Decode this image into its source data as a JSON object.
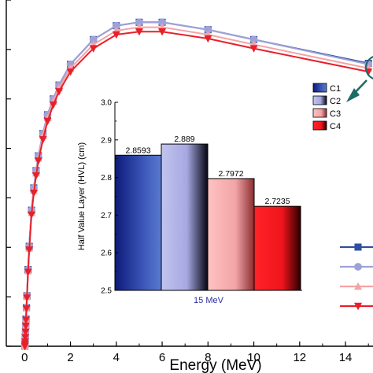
{
  "chart_data": [
    {
      "type": "line",
      "xlabel": "Energy (MeV)",
      "ylabel": "",
      "xlim": [
        -0.8,
        15.2
      ],
      "ylim": [
        0,
        7.0
      ],
      "x_ticks": [
        "0",
        "2",
        "4",
        "6",
        "8",
        "10",
        "12",
        "14"
      ],
      "grid": false,
      "legend": "right",
      "series": [
        {
          "name": "",
          "color": "#2f4fa0",
          "marker": "square",
          "x": [
            0.01,
            0.015,
            0.02,
            0.03,
            0.04,
            0.05,
            0.06,
            0.08,
            0.1,
            0.15,
            0.2,
            0.3,
            0.4,
            0.5,
            0.6,
            0.8,
            1,
            1.25,
            1.5,
            2,
            3,
            4,
            5,
            6,
            8,
            10,
            15
          ],
          "y": [
            0.0,
            0.04,
            0.09,
            0.19,
            0.3,
            0.42,
            0.55,
            0.78,
            1.02,
            1.55,
            2.02,
            2.75,
            3.2,
            3.55,
            3.85,
            4.3,
            4.68,
            5.0,
            5.28,
            5.7,
            6.2,
            6.48,
            6.55,
            6.55,
            6.4,
            6.2,
            5.72
          ]
        },
        {
          "name": "",
          "color": "#9ea2d8",
          "marker": "circle",
          "x": [
            0.01,
            0.015,
            0.02,
            0.03,
            0.04,
            0.05,
            0.06,
            0.08,
            0.1,
            0.15,
            0.2,
            0.3,
            0.4,
            0.5,
            0.6,
            0.8,
            1,
            1.25,
            1.5,
            2,
            3,
            4,
            5,
            6,
            8,
            10,
            15
          ],
          "y": [
            0.0,
            0.04,
            0.09,
            0.19,
            0.3,
            0.42,
            0.55,
            0.78,
            1.02,
            1.55,
            2.02,
            2.75,
            3.2,
            3.55,
            3.85,
            4.3,
            4.68,
            5.0,
            5.28,
            5.7,
            6.2,
            6.48,
            6.55,
            6.55,
            6.4,
            6.2,
            5.7
          ]
        },
        {
          "name": "",
          "color": "#f4a3a6",
          "marker": "triangle",
          "x": [
            0.01,
            0.015,
            0.02,
            0.03,
            0.04,
            0.05,
            0.06,
            0.08,
            0.1,
            0.15,
            0.2,
            0.3,
            0.4,
            0.5,
            0.6,
            0.8,
            1,
            1.25,
            1.5,
            2,
            3,
            4,
            5,
            6,
            8,
            10,
            15
          ],
          "y": [
            0.0,
            0.04,
            0.09,
            0.19,
            0.3,
            0.42,
            0.54,
            0.77,
            1.0,
            1.52,
            1.98,
            2.7,
            3.15,
            3.5,
            3.8,
            4.25,
            4.62,
            4.95,
            5.22,
            5.62,
            6.1,
            6.38,
            6.45,
            6.45,
            6.3,
            6.1,
            5.62
          ]
        },
        {
          "name": "",
          "color": "#e8202a",
          "marker": "triangle-down",
          "x": [
            0.01,
            0.015,
            0.02,
            0.03,
            0.04,
            0.05,
            0.06,
            0.08,
            0.1,
            0.15,
            0.2,
            0.3,
            0.4,
            0.5,
            0.6,
            0.8,
            1,
            1.25,
            1.5,
            2,
            3,
            4,
            5,
            6,
            8,
            10,
            15
          ],
          "y": [
            0.0,
            0.04,
            0.09,
            0.18,
            0.29,
            0.41,
            0.53,
            0.76,
            0.98,
            1.5,
            1.95,
            2.66,
            3.1,
            3.45,
            3.75,
            4.18,
            4.55,
            4.88,
            5.15,
            5.55,
            6.02,
            6.3,
            6.36,
            6.36,
            6.22,
            6.02,
            5.55
          ]
        }
      ]
    },
    {
      "type": "bar",
      "xlabel": "15 MeV",
      "ylabel": "Half Value Layer (HVL) (cm)",
      "ylim": [
        2.5,
        3.0
      ],
      "y_ticks": [
        "2.5",
        "2.6",
        "2.7",
        "2.8",
        "2.9",
        "3.0"
      ],
      "categories": [
        "C1",
        "C2",
        "C3",
        "C4"
      ],
      "values": [
        2.8593,
        2.889,
        2.7972,
        2.7235
      ],
      "data_labels": [
        "2.8593",
        "2.889",
        "2.7972",
        "2.7235"
      ],
      "colors": [
        "#2f4fa0",
        "#9ea2d8",
        "#f4a3a6",
        "#e8202a"
      ],
      "legend": "top-right"
    }
  ]
}
